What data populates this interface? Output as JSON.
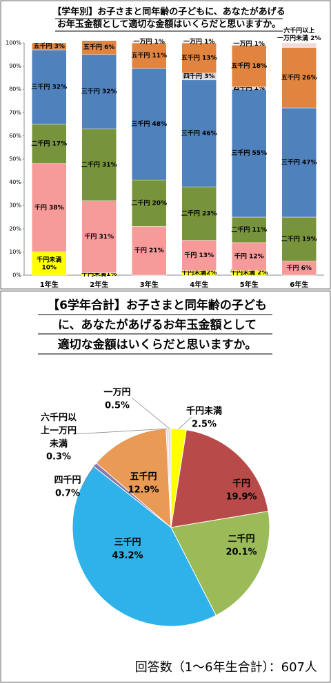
{
  "chart_data": [
    {
      "type": "stacked_bar",
      "title": "【学年別】お子さまと同年齢の子どもに、あなたがあげる\nお年玉金額として適切な金額はいくらだと思いますか。",
      "categories": [
        "1年生",
        "2年生",
        "3年生",
        "4年生",
        "5年生",
        "6年生"
      ],
      "ylim": [
        0,
        100
      ],
      "yticks": [
        {
          "value": 0,
          "label": "0%"
        },
        {
          "value": 10,
          "label": "10%"
        },
        {
          "value": 20,
          "label": "20%"
        },
        {
          "value": 30,
          "label": "30%"
        },
        {
          "value": 40,
          "label": "40%"
        },
        {
          "value": 50,
          "label": "50%"
        },
        {
          "value": 60,
          "label": "60%"
        },
        {
          "value": 70,
          "label": "70%"
        },
        {
          "value": 80,
          "label": "80%"
        },
        {
          "value": 90,
          "label": "90%"
        },
        {
          "value": 100,
          "label": "100%"
        }
      ],
      "grid": false,
      "series": [
        {
          "color": "#ffff00",
          "values": [
            10,
            1,
            null,
            2,
            2,
            null
          ],
          "value_labels": [
            "千円未満\n10%",
            "千円未満1%",
            null,
            "千円未満2%",
            "千円未満 2%",
            null
          ]
        },
        {
          "color": "#f79a9a",
          "values": [
            38,
            31,
            21,
            13,
            12,
            6
          ],
          "value_labels": [
            "千円 38%",
            "千円 31%",
            "千円 21%",
            "千円 13%",
            "千円 12%",
            "千円 6%"
          ]
        },
        {
          "color": "#77933c",
          "values": [
            17,
            31,
            20,
            23,
            11,
            19
          ],
          "value_labels": [
            "二千円 17%",
            "二千円 31%",
            "二千円 20%",
            "二千円 23%",
            "二千円 11%",
            "二千円 19%"
          ]
        },
        {
          "color": "#4f81bd",
          "values": [
            32,
            32,
            48,
            46,
            55,
            47
          ],
          "value_labels": [
            "三千円 32%",
            "三千円 32%",
            "三千円 48%",
            "三千円 46%",
            "三千円 55%",
            "三千円 47%"
          ]
        },
        {
          "color": "#d9d9d9",
          "values": [
            null,
            null,
            null,
            3,
            1,
            null
          ],
          "value_labels": [
            null,
            null,
            null,
            "四千円 3%",
            "四千円 1%",
            null
          ]
        },
        {
          "color": "#e0843f",
          "values": [
            3,
            6,
            11,
            13,
            18,
            26
          ],
          "value_labels": [
            "五千円 3%",
            "五千円 6%",
            "五千円 11%",
            "五千円 13%",
            "五千円 18%",
            "五千円 26%"
          ]
        },
        {
          "color": "#f2dcdb",
          "values": [
            null,
            null,
            null,
            null,
            null,
            2
          ],
          "value_labels": [
            null,
            null,
            null,
            null,
            null,
            "六千円以上\n一万円未満 2%"
          ]
        },
        {
          "color": "#f5f5f5",
          "values": [
            null,
            null,
            1,
            1,
            1,
            null
          ],
          "value_labels": [
            null,
            null,
            "一万円 1%",
            "一万円 1%",
            "一万円 1%",
            null
          ]
        }
      ]
    },
    {
      "type": "pie",
      "title": "【6学年合計】お子さまと同年齢の子ども\nに、あなたがあげるお年玉金額として\n適切な金額はいくらだと思いますか。",
      "categories": [
        "千円未満",
        "千円",
        "二千円",
        "三千円",
        "四千円",
        "五千円",
        "六千円以\n上一万円\n未満",
        "一万円"
      ],
      "values": [
        2.5,
        19.9,
        20.1,
        43.2,
        0.7,
        12.9,
        0.3,
        0.5
      ],
      "value_labels": [
        "2.5%",
        "19.9%",
        "20.1%",
        "43.2%",
        "0.7%",
        "12.9%",
        "0.3%",
        "0.5%"
      ],
      "colors": [
        "#ffff00",
        "#b84a4a",
        "#9bbb59",
        "#2fb2ea",
        "#8a7aa8",
        "#e99a55",
        "#f2c5c5",
        "#e0e0e0"
      ],
      "note": "回答数（1～6年生合計）：607人"
    }
  ]
}
